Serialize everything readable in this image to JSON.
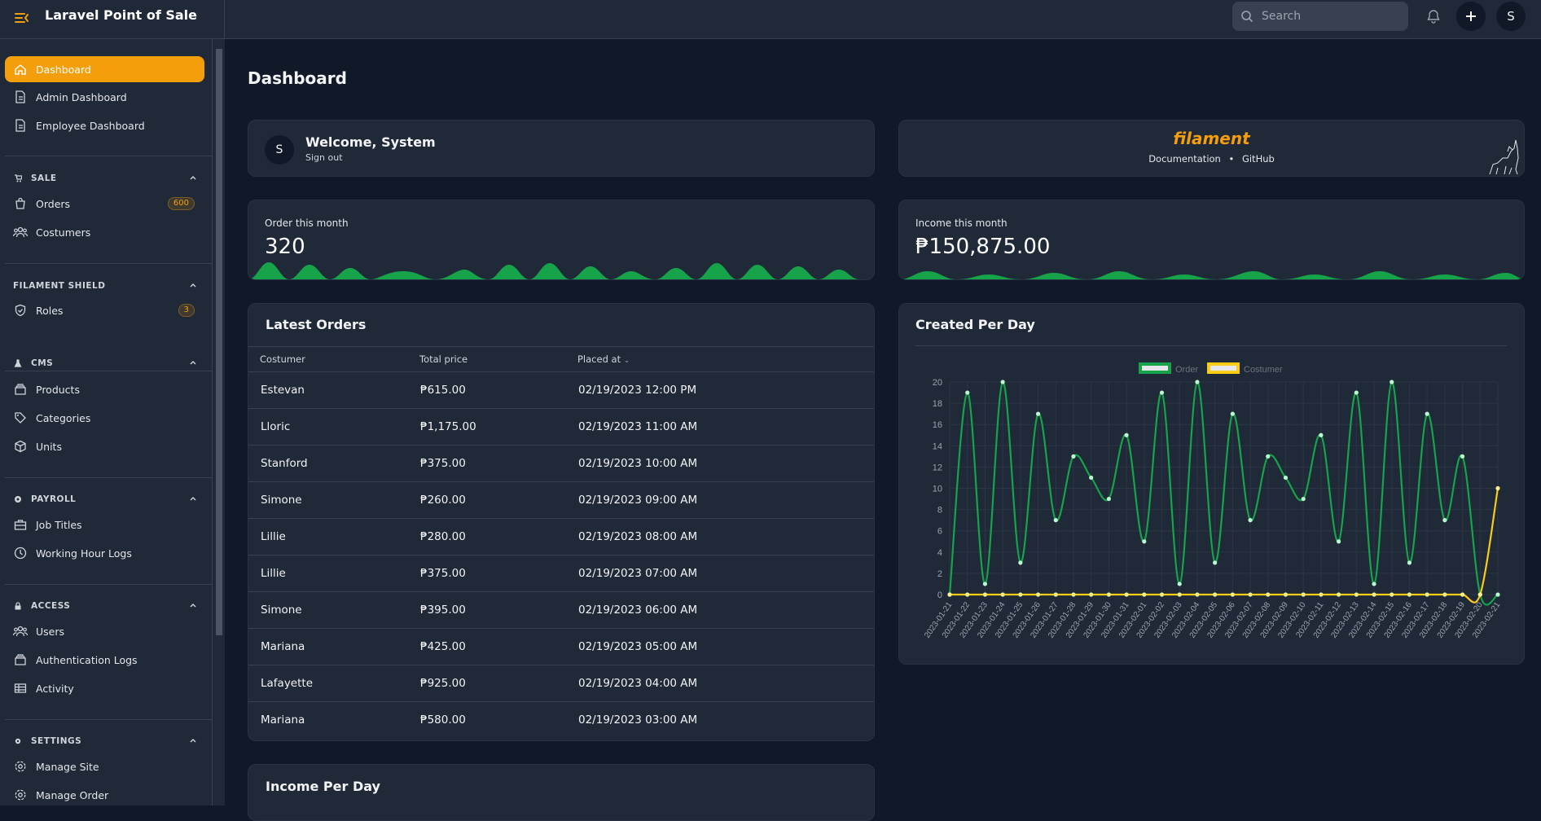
{
  "app": {
    "title": "Laravel Point of Sale"
  },
  "search": {
    "placeholder": "Search"
  },
  "user": {
    "initial": "S"
  },
  "sidebar": {
    "top_items": [
      {
        "label": "Dashboard",
        "icon": "home-icon",
        "active": true
      },
      {
        "label": "Admin Dashboard",
        "icon": "document-icon"
      },
      {
        "label": "Employee Dashboard",
        "icon": "document-icon"
      }
    ],
    "groups": [
      {
        "title": "SALE",
        "icon": "cart-icon",
        "items": [
          {
            "label": "Orders",
            "icon": "bag-icon",
            "badge": "600"
          },
          {
            "label": "Costumers",
            "icon": "users-icon"
          }
        ]
      },
      {
        "title": "FILAMENT SHIELD",
        "items": [
          {
            "label": "Roles",
            "icon": "shield-icon",
            "badge": "3"
          }
        ]
      },
      {
        "title": "CMS",
        "icon": "flask-icon",
        "items": [
          {
            "label": "Products",
            "icon": "box-icon"
          },
          {
            "label": "Categories",
            "icon": "tag-icon"
          },
          {
            "label": "Units",
            "icon": "cube-icon"
          }
        ]
      },
      {
        "title": "PAYROLL",
        "icon": "coin-icon",
        "items": [
          {
            "label": "Job Titles",
            "icon": "briefcase-icon"
          },
          {
            "label": "Working Hour Logs",
            "icon": "clock-icon"
          }
        ]
      },
      {
        "title": "ACCESS",
        "icon": "lock-icon",
        "items": [
          {
            "label": "Users",
            "icon": "users-icon"
          },
          {
            "label": "Authentication Logs",
            "icon": "box-icon"
          },
          {
            "label": "Activity",
            "icon": "table-icon"
          }
        ]
      },
      {
        "title": "SETTINGS",
        "icon": "gear-icon",
        "items": [
          {
            "label": "Manage Site",
            "icon": "gear-icon"
          },
          {
            "label": "Manage Order",
            "icon": "gear-icon"
          }
        ]
      }
    ]
  },
  "page": {
    "title": "Dashboard"
  },
  "welcome": {
    "avatar": "S",
    "title": "Welcome, System",
    "signout": "Sign out"
  },
  "filament": {
    "logo": "filament",
    "doc_link": "Documentation",
    "separator": "•",
    "github_link": "GitHub"
  },
  "stats": {
    "orders": {
      "label": "Order this month",
      "value": "320"
    },
    "income": {
      "label": "Income this month",
      "value": "₱150,875.00"
    }
  },
  "latest_orders": {
    "title": "Latest Orders",
    "columns": [
      "Costumer",
      "Total price",
      "Placed at"
    ],
    "sort_indicator": "⌄",
    "rows": [
      [
        "Estevan",
        "₱615.00",
        "02/19/2023 12:00 PM"
      ],
      [
        "Lloric",
        "₱1,175.00",
        "02/19/2023 11:00 AM"
      ],
      [
        "Stanford",
        "₱375.00",
        "02/19/2023 10:00 AM"
      ],
      [
        "Simone",
        "₱260.00",
        "02/19/2023 09:00 AM"
      ],
      [
        "Lillie",
        "₱280.00",
        "02/19/2023 08:00 AM"
      ],
      [
        "Lillie",
        "₱375.00",
        "02/19/2023 07:00 AM"
      ],
      [
        "Simone",
        "₱395.00",
        "02/19/2023 06:00 AM"
      ],
      [
        "Mariana",
        "₱425.00",
        "02/19/2023 05:00 AM"
      ],
      [
        "Lafayette",
        "₱925.00",
        "02/19/2023 04:00 AM"
      ],
      [
        "Mariana",
        "₱580.00",
        "02/19/2023 03:00 AM"
      ]
    ]
  },
  "income_per_day": {
    "title": "Income Per Day"
  },
  "colors": {
    "accent": "#f59e0b",
    "order_series": "#16a34a",
    "customer_series": "#facc15"
  },
  "chart_data": {
    "type": "line",
    "title": "Created Per Day",
    "x": [
      "2023-01-21",
      "2023-01-22",
      "2023-01-23",
      "2023-01-24",
      "2023-01-25",
      "2023-01-26",
      "2023-01-27",
      "2023-01-28",
      "2023-01-29",
      "2023-01-30",
      "2023-01-31",
      "2023-02-01",
      "2023-02-02",
      "2023-02-03",
      "2023-02-04",
      "2023-02-05",
      "2023-02-06",
      "2023-02-07",
      "2023-02-08",
      "2023-02-09",
      "2023-02-10",
      "2023-02-11",
      "2023-02-12",
      "2023-02-13",
      "2023-02-14",
      "2023-02-15",
      "2023-02-16",
      "2023-02-17",
      "2023-02-18",
      "2023-02-19",
      "2023-02-20",
      "2023-02-21"
    ],
    "series": [
      {
        "name": "Order",
        "values": [
          0,
          19,
          1,
          20,
          3,
          17,
          7,
          13,
          11,
          9,
          15,
          5,
          19,
          1,
          20,
          3,
          17,
          7,
          13,
          11,
          9,
          15,
          5,
          19,
          1,
          20,
          3,
          17,
          7,
          13,
          0,
          0
        ]
      },
      {
        "name": "Costumer",
        "values": [
          0,
          0,
          0,
          0,
          0,
          0,
          0,
          0,
          0,
          0,
          0,
          0,
          0,
          0,
          0,
          0,
          0,
          0,
          0,
          0,
          0,
          0,
          0,
          0,
          0,
          0,
          0,
          0,
          0,
          0,
          0,
          10
        ]
      }
    ],
    "ylim": [
      0,
      20
    ],
    "yticks": [
      0,
      2,
      4,
      6,
      8,
      10,
      12,
      14,
      16,
      18,
      20
    ],
    "grid": true,
    "legend": "top"
  }
}
